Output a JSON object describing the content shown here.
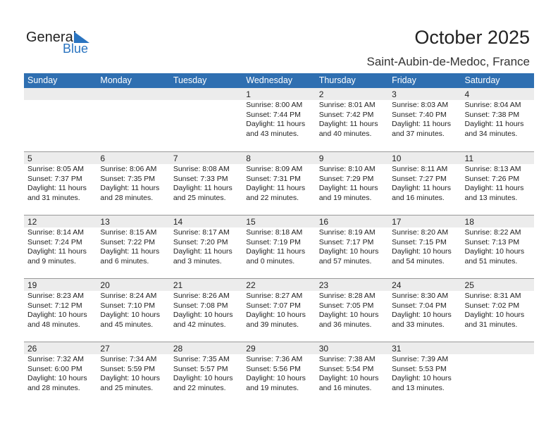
{
  "logo": {
    "general": "General",
    "blue": "Blue"
  },
  "title": "October 2025",
  "location": "Saint-Aubin-de-Medoc, France",
  "colors": {
    "header": "#2f6fb1",
    "band": "#ececec"
  },
  "weekdays": [
    "Sunday",
    "Monday",
    "Tuesday",
    "Wednesday",
    "Thursday",
    "Friday",
    "Saturday"
  ],
  "weeks": [
    [
      null,
      null,
      null,
      {
        "day": "1",
        "sunrise": "Sunrise: 8:00 AM",
        "sunset": "Sunset: 7:44 PM",
        "daylight": "Daylight: 11 hours",
        "minutes": "and 43 minutes."
      },
      {
        "day": "2",
        "sunrise": "Sunrise: 8:01 AM",
        "sunset": "Sunset: 7:42 PM",
        "daylight": "Daylight: 11 hours",
        "minutes": "and 40 minutes."
      },
      {
        "day": "3",
        "sunrise": "Sunrise: 8:03 AM",
        "sunset": "Sunset: 7:40 PM",
        "daylight": "Daylight: 11 hours",
        "minutes": "and 37 minutes."
      },
      {
        "day": "4",
        "sunrise": "Sunrise: 8:04 AM",
        "sunset": "Sunset: 7:38 PM",
        "daylight": "Daylight: 11 hours",
        "minutes": "and 34 minutes."
      }
    ],
    [
      {
        "day": "5",
        "sunrise": "Sunrise: 8:05 AM",
        "sunset": "Sunset: 7:37 PM",
        "daylight": "Daylight: 11 hours",
        "minutes": "and 31 minutes."
      },
      {
        "day": "6",
        "sunrise": "Sunrise: 8:06 AM",
        "sunset": "Sunset: 7:35 PM",
        "daylight": "Daylight: 11 hours",
        "minutes": "and 28 minutes."
      },
      {
        "day": "7",
        "sunrise": "Sunrise: 8:08 AM",
        "sunset": "Sunset: 7:33 PM",
        "daylight": "Daylight: 11 hours",
        "minutes": "and 25 minutes."
      },
      {
        "day": "8",
        "sunrise": "Sunrise: 8:09 AM",
        "sunset": "Sunset: 7:31 PM",
        "daylight": "Daylight: 11 hours",
        "minutes": "and 22 minutes."
      },
      {
        "day": "9",
        "sunrise": "Sunrise: 8:10 AM",
        "sunset": "Sunset: 7:29 PM",
        "daylight": "Daylight: 11 hours",
        "minutes": "and 19 minutes."
      },
      {
        "day": "10",
        "sunrise": "Sunrise: 8:11 AM",
        "sunset": "Sunset: 7:27 PM",
        "daylight": "Daylight: 11 hours",
        "minutes": "and 16 minutes."
      },
      {
        "day": "11",
        "sunrise": "Sunrise: 8:13 AM",
        "sunset": "Sunset: 7:26 PM",
        "daylight": "Daylight: 11 hours",
        "minutes": "and 13 minutes."
      }
    ],
    [
      {
        "day": "12",
        "sunrise": "Sunrise: 8:14 AM",
        "sunset": "Sunset: 7:24 PM",
        "daylight": "Daylight: 11 hours",
        "minutes": "and 9 minutes."
      },
      {
        "day": "13",
        "sunrise": "Sunrise: 8:15 AM",
        "sunset": "Sunset: 7:22 PM",
        "daylight": "Daylight: 11 hours",
        "minutes": "and 6 minutes."
      },
      {
        "day": "14",
        "sunrise": "Sunrise: 8:17 AM",
        "sunset": "Sunset: 7:20 PM",
        "daylight": "Daylight: 11 hours",
        "minutes": "and 3 minutes."
      },
      {
        "day": "15",
        "sunrise": "Sunrise: 8:18 AM",
        "sunset": "Sunset: 7:19 PM",
        "daylight": "Daylight: 11 hours",
        "minutes": "and 0 minutes."
      },
      {
        "day": "16",
        "sunrise": "Sunrise: 8:19 AM",
        "sunset": "Sunset: 7:17 PM",
        "daylight": "Daylight: 10 hours",
        "minutes": "and 57 minutes."
      },
      {
        "day": "17",
        "sunrise": "Sunrise: 8:20 AM",
        "sunset": "Sunset: 7:15 PM",
        "daylight": "Daylight: 10 hours",
        "minutes": "and 54 minutes."
      },
      {
        "day": "18",
        "sunrise": "Sunrise: 8:22 AM",
        "sunset": "Sunset: 7:13 PM",
        "daylight": "Daylight: 10 hours",
        "minutes": "and 51 minutes."
      }
    ],
    [
      {
        "day": "19",
        "sunrise": "Sunrise: 8:23 AM",
        "sunset": "Sunset: 7:12 PM",
        "daylight": "Daylight: 10 hours",
        "minutes": "and 48 minutes."
      },
      {
        "day": "20",
        "sunrise": "Sunrise: 8:24 AM",
        "sunset": "Sunset: 7:10 PM",
        "daylight": "Daylight: 10 hours",
        "minutes": "and 45 minutes."
      },
      {
        "day": "21",
        "sunrise": "Sunrise: 8:26 AM",
        "sunset": "Sunset: 7:08 PM",
        "daylight": "Daylight: 10 hours",
        "minutes": "and 42 minutes."
      },
      {
        "day": "22",
        "sunrise": "Sunrise: 8:27 AM",
        "sunset": "Sunset: 7:07 PM",
        "daylight": "Daylight: 10 hours",
        "minutes": "and 39 minutes."
      },
      {
        "day": "23",
        "sunrise": "Sunrise: 8:28 AM",
        "sunset": "Sunset: 7:05 PM",
        "daylight": "Daylight: 10 hours",
        "minutes": "and 36 minutes."
      },
      {
        "day": "24",
        "sunrise": "Sunrise: 8:30 AM",
        "sunset": "Sunset: 7:04 PM",
        "daylight": "Daylight: 10 hours",
        "minutes": "and 33 minutes."
      },
      {
        "day": "25",
        "sunrise": "Sunrise: 8:31 AM",
        "sunset": "Sunset: 7:02 PM",
        "daylight": "Daylight: 10 hours",
        "minutes": "and 31 minutes."
      }
    ],
    [
      {
        "day": "26",
        "sunrise": "Sunrise: 7:32 AM",
        "sunset": "Sunset: 6:00 PM",
        "daylight": "Daylight: 10 hours",
        "minutes": "and 28 minutes."
      },
      {
        "day": "27",
        "sunrise": "Sunrise: 7:34 AM",
        "sunset": "Sunset: 5:59 PM",
        "daylight": "Daylight: 10 hours",
        "minutes": "and 25 minutes."
      },
      {
        "day": "28",
        "sunrise": "Sunrise: 7:35 AM",
        "sunset": "Sunset: 5:57 PM",
        "daylight": "Daylight: 10 hours",
        "minutes": "and 22 minutes."
      },
      {
        "day": "29",
        "sunrise": "Sunrise: 7:36 AM",
        "sunset": "Sunset: 5:56 PM",
        "daylight": "Daylight: 10 hours",
        "minutes": "and 19 minutes."
      },
      {
        "day": "30",
        "sunrise": "Sunrise: 7:38 AM",
        "sunset": "Sunset: 5:54 PM",
        "daylight": "Daylight: 10 hours",
        "minutes": "and 16 minutes."
      },
      {
        "day": "31",
        "sunrise": "Sunrise: 7:39 AM",
        "sunset": "Sunset: 5:53 PM",
        "daylight": "Daylight: 10 hours",
        "minutes": "and 13 minutes."
      },
      null
    ]
  ]
}
